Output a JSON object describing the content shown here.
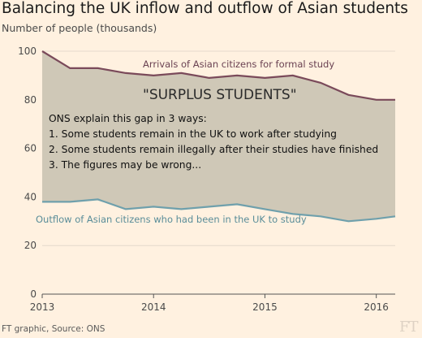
{
  "header": {
    "title": "Balancing the UK inflow and outflow of Asian students",
    "subtitle": "Number of people (thousands)"
  },
  "footer": {
    "source": "FT graphic, Source: ONS",
    "logo": "FT"
  },
  "chart_data": {
    "type": "area",
    "x": [
      2013.0,
      2013.25,
      2013.5,
      2013.75,
      2014.0,
      2014.25,
      2014.5,
      2014.75,
      2015.0,
      2015.25,
      2015.5,
      2015.75,
      2016.0,
      2016.17
    ],
    "series": [
      {
        "name": "Arrivals of Asian citizens for formal study",
        "color": "#7a4a5a",
        "values": [
          100,
          93,
          93,
          91,
          90,
          91,
          89,
          90,
          89,
          90,
          87,
          82,
          80,
          80
        ]
      },
      {
        "name": "Outflow of Asian citizens who had been in the UK to study",
        "color": "#6fa0ac",
        "values": [
          38,
          38,
          39,
          35,
          36,
          35,
          36,
          37,
          35,
          33,
          32,
          30,
          31,
          32
        ]
      }
    ],
    "fill_between_color": "#cfc8b7",
    "ylim": [
      0,
      100
    ],
    "yticks": [
      0,
      20,
      40,
      60,
      80,
      100
    ],
    "xlim": [
      2013.0,
      2016.17
    ],
    "xticks": [
      2013,
      2014,
      2015,
      2016
    ],
    "xtick_labels": [
      "2013",
      "2014",
      "2015",
      "2016"
    ],
    "grid": true,
    "annotations": {
      "arrivals_label": "Arrivals of Asian citizens for formal study",
      "outflow_label": "Outflow of Asian citizens who had been in the UK to study",
      "surplus_label": "\"SURPLUS STUDENTS\"",
      "ons_lines": [
        "ONS explain this gap in 3 ways:",
        "1. Some students remain in the UK to work after studying",
        "2. Some students remain illegally after their studies have finished",
        "3. The figures may be wrong..."
      ]
    }
  }
}
